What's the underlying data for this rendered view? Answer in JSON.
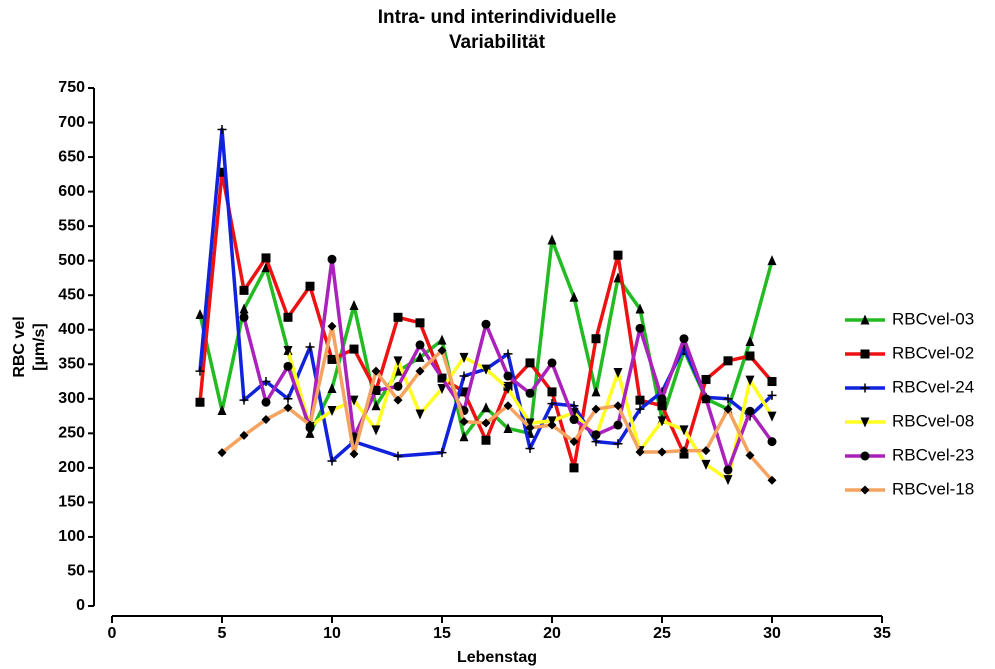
{
  "chart_data": {
    "type": "line",
    "title": [
      "Intra- und interindividuelle",
      "Variabilität"
    ],
    "xlabel": "Lebenstag",
    "ylabel": [
      "RBC vel",
      "[µm/s]"
    ],
    "xlim": [
      0,
      35
    ],
    "xticks": [
      0,
      5,
      10,
      15,
      20,
      25,
      30,
      35
    ],
    "ylim": [
      0,
      750
    ],
    "yticks": [
      0,
      50,
      100,
      150,
      200,
      250,
      300,
      350,
      400,
      450,
      500,
      550,
      600,
      650,
      700,
      750
    ],
    "legend": "right",
    "series": [
      {
        "name": "RBCvel-03",
        "color": "#22bb22",
        "marker": "triangle",
        "x": [
          4,
          5,
          6,
          7,
          8,
          9,
          10,
          11,
          12,
          13,
          14,
          15,
          16,
          17,
          18,
          19,
          20,
          21,
          22,
          23,
          24,
          25,
          26,
          27,
          28,
          29,
          30
        ],
        "values": [
          422,
          283,
          430,
          490,
          370,
          250,
          315,
          435,
          290,
          340,
          360,
          385,
          245,
          287,
          257,
          250,
          530,
          447,
          310,
          475,
          430,
          270,
          370,
          300,
          285,
          383,
          500
        ]
      },
      {
        "name": "RBCvel-02",
        "color": "#ee1111",
        "marker": "square",
        "x": [
          4,
          5,
          6,
          7,
          8,
          9,
          10,
          11,
          12,
          13,
          14,
          15,
          16,
          17,
          18,
          19,
          20,
          21,
          22,
          23,
          24,
          25,
          26,
          27,
          28,
          29,
          30
        ],
        "values": [
          295,
          628,
          457,
          504,
          418,
          463,
          357,
          372,
          312,
          418,
          410,
          330,
          310,
          240,
          318,
          352,
          310,
          200,
          387,
          508,
          298,
          290,
          220,
          328,
          355,
          362,
          325
        ]
      },
      {
        "name": "RBCvel-24",
        "color": "#1122dd",
        "marker": "plus",
        "x": [
          4,
          5,
          6,
          7,
          8,
          9,
          10,
          11,
          13,
          15,
          16,
          17,
          18,
          19,
          20,
          21,
          22,
          23,
          24,
          25,
          26,
          27,
          28,
          29,
          30
        ],
        "values": [
          340,
          690,
          298,
          325,
          300,
          375,
          210,
          238,
          217,
          222,
          333,
          343,
          365,
          228,
          293,
          290,
          238,
          235,
          285,
          310,
          375,
          302,
          300,
          275,
          305
        ]
      },
      {
        "name": "RBCvel-08",
        "color": "#ffff22",
        "marker": "invtriangle",
        "x": [
          8,
          9,
          10,
          11,
          12,
          13,
          14,
          15,
          16,
          17,
          18,
          19,
          20,
          21,
          22,
          23,
          24,
          25,
          26,
          27,
          28,
          29,
          30
        ],
        "values": [
          370,
          260,
          283,
          298,
          255,
          355,
          278,
          315,
          360,
          343,
          315,
          265,
          268,
          280,
          245,
          338,
          225,
          268,
          255,
          205,
          183,
          327,
          275
        ]
      },
      {
        "name": "RBCvel-23",
        "color": "#aa22bb",
        "marker": "circle",
        "x": [
          6,
          7,
          8,
          9,
          10,
          11,
          12,
          13,
          14,
          15,
          16,
          17,
          18,
          19,
          20,
          21,
          22,
          23,
          24,
          25,
          26,
          27,
          28,
          29,
          30
        ],
        "values": [
          418,
          295,
          347,
          258,
          502,
          245,
          312,
          318,
          378,
          330,
          283,
          408,
          333,
          308,
          352,
          270,
          248,
          262,
          402,
          300,
          387,
          300,
          197,
          282,
          238
        ]
      },
      {
        "name": "RBCvel-18",
        "color": "#f4a460",
        "marker": "diamond",
        "x": [
          5,
          6,
          7,
          8,
          9,
          10,
          11,
          12,
          13,
          14,
          15,
          16,
          17,
          18,
          19,
          20,
          21,
          22,
          23,
          24,
          25,
          26,
          27,
          28,
          29,
          30
        ],
        "values": [
          222,
          247,
          270,
          287,
          262,
          405,
          220,
          340,
          298,
          340,
          370,
          267,
          265,
          290,
          258,
          262,
          238,
          285,
          290,
          223,
          223,
          225,
          225,
          285,
          218,
          182
        ]
      }
    ]
  }
}
